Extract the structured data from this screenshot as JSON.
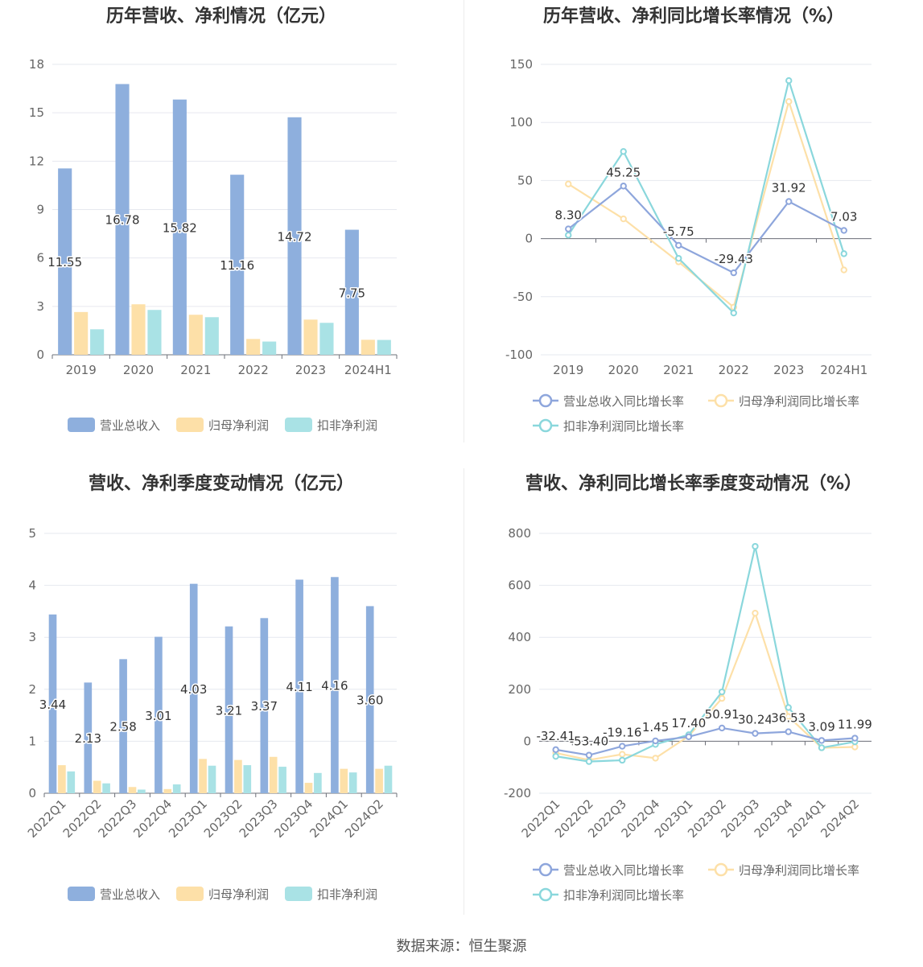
{
  "source_label": "数据来源：恒生聚源",
  "chart_data": [
    {
      "id": "annual-bar",
      "type": "bar",
      "title": "历年营收、净利情况（亿元）",
      "categories": [
        "2019",
        "2020",
        "2021",
        "2022",
        "2023",
        "2024H1"
      ],
      "ylim": [
        0,
        18
      ],
      "yticks": [
        0,
        3,
        6,
        9,
        12,
        15,
        18
      ],
      "grid": true,
      "legend_position": "bottom-center",
      "label_series": 0,
      "series": [
        {
          "name": "营业总收入",
          "color": "#8eafdd",
          "values": [
            11.55,
            16.78,
            15.82,
            11.16,
            14.72,
            7.75
          ],
          "labels": [
            "11.55",
            "16.78",
            "15.82",
            "11.16",
            "14.72",
            "7.75"
          ]
        },
        {
          "name": "归母净利润",
          "color": "#fde0a8",
          "values": [
            2.65,
            3.13,
            2.48,
            0.98,
            2.18,
            0.93
          ]
        },
        {
          "name": "扣非净利润",
          "color": "#a9e2e5",
          "values": [
            1.58,
            2.78,
            2.33,
            0.82,
            1.98,
            0.92
          ]
        }
      ]
    },
    {
      "id": "annual-line",
      "type": "line",
      "title": "历年营收、净利同比增长率情况（%）",
      "categories": [
        "2019",
        "2020",
        "2021",
        "2022",
        "2023",
        "2024H1"
      ],
      "ylim": [
        -100,
        150
      ],
      "yticks": [
        -100,
        -50,
        0,
        50,
        100,
        150
      ],
      "grid": true,
      "legend_position": "bottom-center",
      "label_series": 0,
      "series": [
        {
          "name": "营业总收入同比增长率",
          "color": "#8ea6dc",
          "values": [
            8.3,
            45.25,
            -5.75,
            -29.43,
            31.92,
            7.03
          ],
          "labels": [
            "8.30",
            "45.25",
            "-5.75",
            "-29.43",
            "31.92",
            "7.03"
          ]
        },
        {
          "name": "归母净利润同比增长率",
          "color": "#fde0a8",
          "values": [
            47,
            17,
            -20,
            -59,
            118,
            -27
          ]
        },
        {
          "name": "扣非净利润同比增长率",
          "color": "#8ad7dc",
          "values": [
            3,
            75,
            -17,
            -64,
            136,
            -13
          ]
        }
      ]
    },
    {
      "id": "quarter-bar",
      "type": "bar",
      "title": "营收、净利季度变动情况（亿元）",
      "categories": [
        "2022Q1",
        "2022Q2",
        "2022Q3",
        "2022Q4",
        "2023Q1",
        "2023Q2",
        "2023Q3",
        "2023Q4",
        "2024Q1",
        "2024Q2"
      ],
      "ylim": [
        0,
        5
      ],
      "yticks": [
        0,
        1,
        2,
        3,
        4,
        5
      ],
      "grid": true,
      "legend_position": "bottom-center",
      "label_series": 0,
      "series": [
        {
          "name": "营业总收入",
          "color": "#8eafdd",
          "values": [
            3.44,
            2.13,
            2.58,
            3.01,
            4.03,
            3.21,
            3.37,
            4.11,
            4.16,
            3.6
          ],
          "labels": [
            "3.44",
            "2.13",
            "2.58",
            "3.01",
            "4.03",
            "3.21",
            "3.37",
            "4.11",
            "4.16",
            "3.60"
          ]
        },
        {
          "name": "归母净利润",
          "color": "#fde0a8",
          "values": [
            0.54,
            0.24,
            0.12,
            0.08,
            0.66,
            0.64,
            0.7,
            0.2,
            0.47,
            0.47
          ]
        },
        {
          "name": "扣非净利润",
          "color": "#a9e2e5",
          "values": [
            0.42,
            0.19,
            0.07,
            0.17,
            0.53,
            0.54,
            0.51,
            0.39,
            0.4,
            0.53
          ]
        }
      ]
    },
    {
      "id": "quarter-line",
      "type": "line",
      "title": "营收、净利同比增长率季度变动情况（%）",
      "categories": [
        "2022Q1",
        "2022Q2",
        "2022Q3",
        "2022Q4",
        "2023Q1",
        "2023Q2",
        "2023Q3",
        "2023Q4",
        "2024Q1",
        "2024Q2"
      ],
      "ylim": [
        -200,
        800
      ],
      "yticks": [
        -200,
        0,
        200,
        400,
        600,
        800
      ],
      "grid": true,
      "legend_position": "bottom-center",
      "label_series": 0,
      "series": [
        {
          "name": "营业总收入同比增长率",
          "color": "#8ea6dc",
          "values": [
            -32.41,
            -53.4,
            -19.16,
            1.45,
            17.4,
            50.91,
            30.24,
            36.53,
            3.09,
            11.99
          ],
          "labels": [
            "-32.41",
            "-53.40",
            "-19.16",
            "1.45",
            "17.40",
            "50.91",
            "30.24",
            "36.53",
            "3.09",
            "11.99"
          ]
        },
        {
          "name": "归母净利润同比增长率",
          "color": "#fde0a8",
          "values": [
            -45,
            -72,
            -50,
            -65,
            20,
            165,
            493,
            95,
            -25,
            -22
          ]
        },
        {
          "name": "扣非净利润同比增长率",
          "color": "#8ad7dc",
          "values": [
            -58,
            -78,
            -73,
            -12,
            25,
            190,
            750,
            130,
            -25,
            -2
          ]
        }
      ]
    }
  ]
}
